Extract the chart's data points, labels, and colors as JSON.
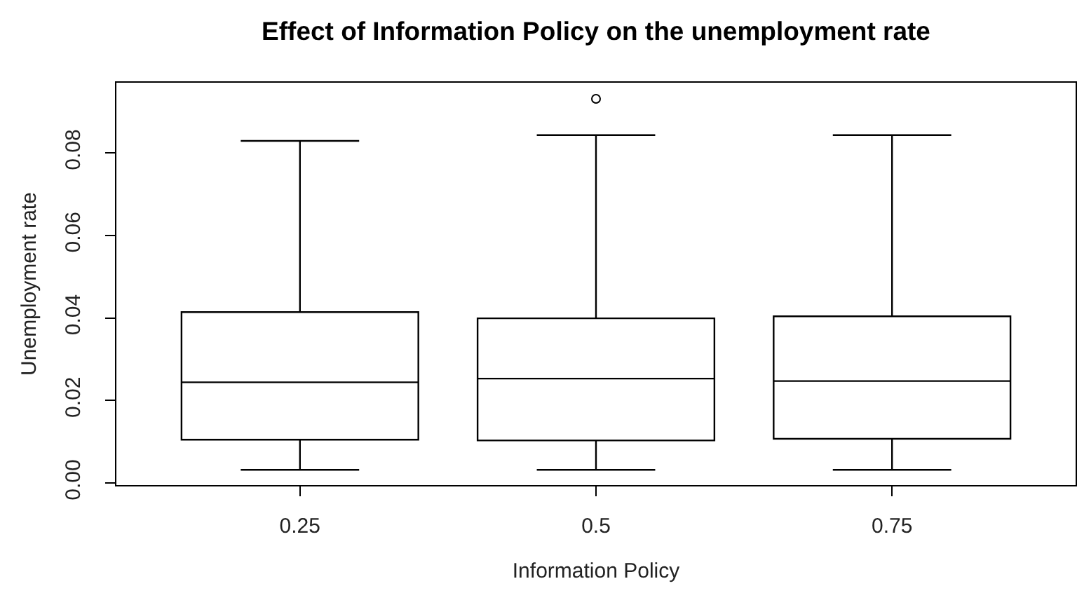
{
  "chart_data": {
    "type": "box",
    "title": "Effect of Information Policy on the unemployment rate",
    "xlabel": "Information Policy",
    "ylabel": "Unemployment rate",
    "categories": [
      "0.25",
      "0.5",
      "0.75"
    ],
    "color": "#000000",
    "boxes": [
      {
        "low": 0.0032,
        "q1": 0.0105,
        "median": 0.0244,
        "q3": 0.0414,
        "high": 0.0829
      },
      {
        "low": 0.0032,
        "q1": 0.0103,
        "median": 0.0253,
        "q3": 0.0399,
        "high": 0.0843,
        "outliers": [
          0.0931
        ]
      },
      {
        "low": 0.0032,
        "q1": 0.0107,
        "median": 0.0247,
        "q3": 0.0404,
        "high": 0.0843
      }
    ],
    "ylim": [
      -0.0005,
      0.097
    ],
    "yticks": [
      {
        "value": 0,
        "label": "0.00"
      },
      0.02,
      0.04,
      0.06,
      0.08
    ],
    "marker": "circle"
  }
}
